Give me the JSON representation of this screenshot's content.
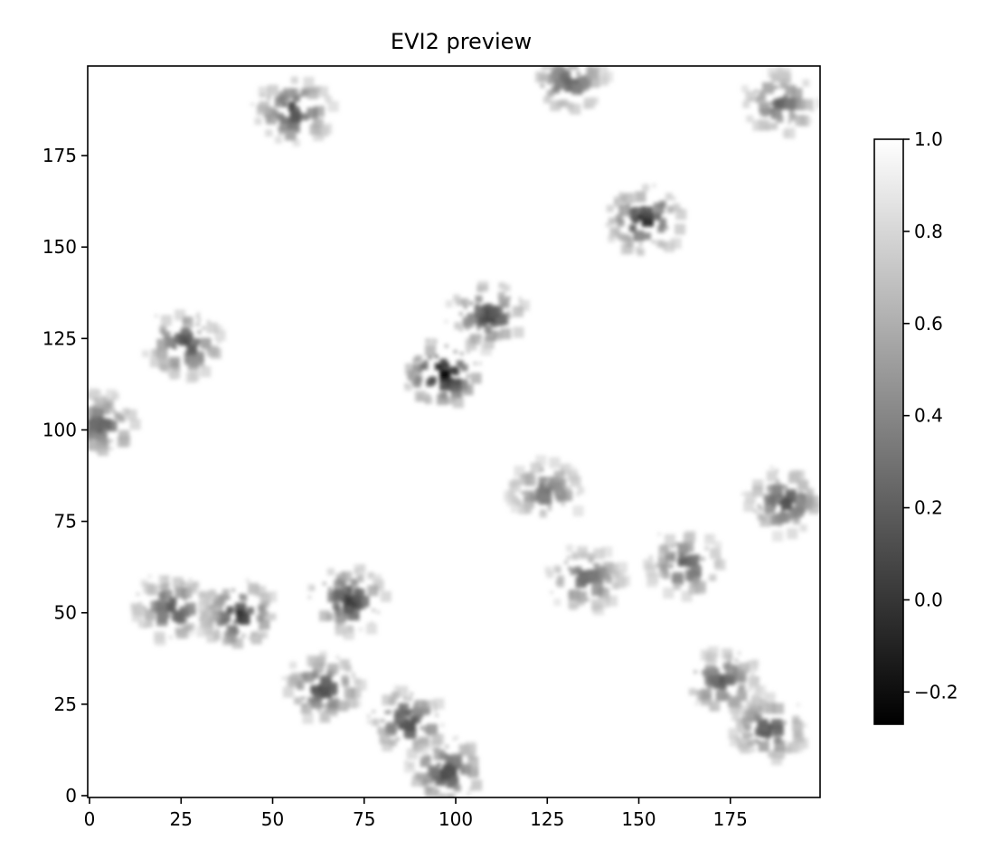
{
  "chart_data": {
    "type": "heatmap",
    "title": "EVI2 preview",
    "xlabel": "",
    "ylabel": "",
    "xlim": [
      -0.5,
      199.5
    ],
    "ylim": [
      -0.5,
      199.5
    ],
    "x_ticks": [
      0,
      25,
      50,
      75,
      100,
      125,
      150,
      175
    ],
    "x_tick_labels": [
      "0",
      "25",
      "50",
      "75",
      "100",
      "125",
      "150",
      "175"
    ],
    "y_ticks": [
      0,
      25,
      50,
      75,
      100,
      125,
      150,
      175
    ],
    "y_tick_labels": [
      "0",
      "25",
      "50",
      "75",
      "100",
      "125",
      "150",
      "175"
    ],
    "grid_shape": [
      200,
      200
    ],
    "origin": "lower",
    "colormap": "gray",
    "colormap_low": "#000000",
    "colormap_high": "#ffffff",
    "colorbar": {
      "vmin": -0.27,
      "vmax": 1.0,
      "ticks": [
        -0.2,
        0.0,
        0.2,
        0.4,
        0.6,
        0.8,
        1.0
      ],
      "tick_labels": [
        "−0.2",
        "0.0",
        "0.2",
        "0.4",
        "0.6",
        "0.8",
        "1.0"
      ]
    },
    "dark_patches": [
      {
        "x": 55,
        "y": 188,
        "value": 0.05
      },
      {
        "x": 25,
        "y": 124,
        "value": 0.05
      },
      {
        "x": 96,
        "y": 116,
        "value": -0.25
      },
      {
        "x": 108,
        "y": 132,
        "value": 0.05
      },
      {
        "x": 151,
        "y": 158,
        "value": -0.1
      },
      {
        "x": 40,
        "y": 50,
        "value": -0.05
      },
      {
        "x": 70,
        "y": 54,
        "value": 0.0
      },
      {
        "x": 22,
        "y": 52,
        "value": 0.1
      },
      {
        "x": 63,
        "y": 30,
        "value": 0.05
      },
      {
        "x": 86,
        "y": 21,
        "value": 0.05
      },
      {
        "x": 97,
        "y": 7,
        "value": 0.05
      },
      {
        "x": 185,
        "y": 19,
        "value": 0.1
      },
      {
        "x": 172,
        "y": 32,
        "value": 0.15
      },
      {
        "x": 189,
        "y": 81,
        "value": 0.1
      },
      {
        "x": 2,
        "y": 102,
        "value": 0.15
      },
      {
        "x": 162,
        "y": 64,
        "value": 0.15
      },
      {
        "x": 135,
        "y": 60,
        "value": 0.2
      },
      {
        "x": 124,
        "y": 84,
        "value": 0.25
      },
      {
        "x": 188,
        "y": 190,
        "value": 0.2
      },
      {
        "x": 130,
        "y": 196,
        "value": 0.2
      }
    ]
  }
}
